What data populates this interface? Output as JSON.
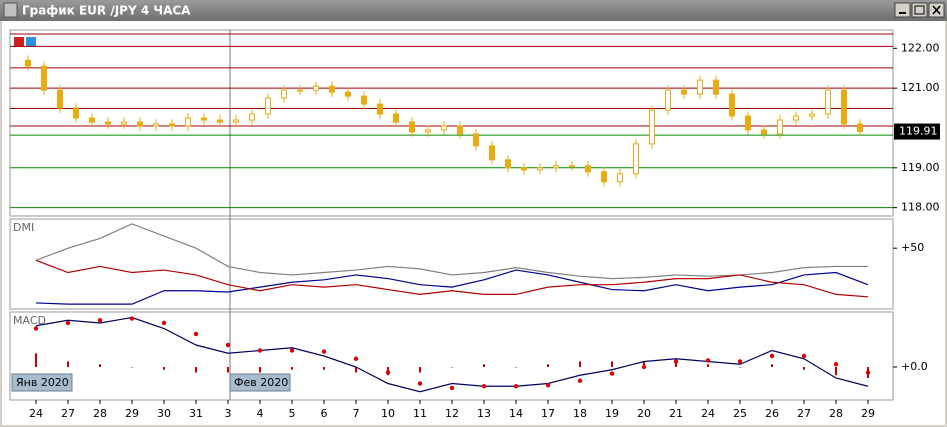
{
  "window": {
    "title": "График EUR /JPY  4 ЧАСА"
  },
  "x_axis": {
    "labels": [
      "24",
      "27",
      "28",
      "29",
      "30",
      "31",
      "3",
      "4",
      "5",
      "6",
      "7",
      "10",
      "11",
      "12",
      "13",
      "14",
      "17",
      "18",
      "19",
      "20",
      "21",
      "24",
      "25",
      "26",
      "27",
      "28",
      "29"
    ],
    "tags": [
      "Янв 2020",
      "Фев 2020"
    ]
  },
  "chart_data": [
    {
      "type": "candlestick",
      "color": "#e8ac10",
      "ylim": [
        117.79,
        122.46
      ],
      "yticks": [
        {
          "value": 122,
          "label": "122.00"
        },
        {
          "value": 121,
          "label": "121.00"
        },
        {
          "value": 119,
          "label": "119.00"
        },
        {
          "value": 118,
          "label": "118.00"
        }
      ],
      "last_price": 119.91,
      "levels": [
        {
          "value": 122.36,
          "color": "#a00000"
        },
        {
          "value": 122.05,
          "color": "#a00000"
        },
        {
          "value": 121.51,
          "color": "#a00000"
        },
        {
          "value": 121.0,
          "color": "#a00000"
        },
        {
          "value": 120.49,
          "color": "#a00000"
        },
        {
          "value": 120.05,
          "color": "#a00000"
        },
        {
          "value": 119.82,
          "color": "#008800"
        },
        {
          "value": 119.0,
          "color": "#008800"
        },
        {
          "value": 118.0,
          "color": "#008800"
        }
      ],
      "open": [
        121.7,
        121.55,
        120.95,
        120.5,
        120.25,
        120.15,
        120.1,
        120.15,
        120.05,
        120.1,
        120.05,
        120.25,
        120.2,
        120.15,
        120.2,
        120.35,
        120.75,
        120.95,
        120.95,
        121.05,
        120.9,
        120.8,
        120.6,
        120.35,
        120.15,
        119.9,
        119.95,
        120.05,
        119.85,
        119.55,
        119.2,
        119.0,
        118.95,
        119.0,
        119.05,
        119.05,
        118.9,
        118.65,
        118.85,
        119.6,
        120.45,
        120.95,
        120.85,
        121.2,
        120.85,
        120.3,
        119.95,
        119.85,
        120.2,
        120.3,
        120.35,
        120.95,
        120.1
      ],
      "high": [
        121.82,
        121.67,
        121.07,
        120.62,
        120.37,
        120.27,
        120.27,
        120.27,
        120.22,
        120.22,
        120.37,
        120.37,
        120.32,
        120.32,
        120.47,
        120.87,
        121.07,
        121.07,
        121.17,
        121.17,
        121.02,
        120.92,
        120.72,
        120.47,
        120.27,
        120.07,
        120.17,
        120.17,
        119.97,
        119.67,
        119.32,
        119.12,
        119.12,
        119.17,
        119.17,
        119.17,
        119.02,
        118.97,
        119.72,
        120.57,
        121.07,
        121.07,
        121.32,
        121.32,
        120.97,
        120.42,
        120.07,
        120.32,
        120.42,
        120.47,
        121.07,
        121.07,
        120.22
      ],
      "low": [
        121.43,
        120.83,
        120.38,
        120.13,
        120.03,
        119.98,
        119.98,
        119.93,
        119.93,
        119.93,
        119.93,
        120.08,
        120.03,
        120.03,
        120.08,
        120.23,
        120.63,
        120.83,
        120.83,
        120.78,
        120.68,
        120.48,
        120.23,
        120.03,
        119.78,
        119.78,
        119.83,
        119.73,
        119.43,
        119.08,
        118.88,
        118.83,
        118.83,
        118.88,
        118.93,
        118.78,
        118.53,
        118.53,
        118.73,
        119.48,
        120.33,
        120.73,
        120.73,
        120.73,
        120.18,
        119.83,
        119.73,
        119.73,
        120.08,
        120.18,
        120.23,
        119.98,
        119.79
      ],
      "close": [
        121.55,
        120.95,
        120.5,
        120.25,
        120.15,
        120.1,
        120.15,
        120.05,
        120.1,
        120.05,
        120.25,
        120.2,
        120.15,
        120.2,
        120.35,
        120.75,
        120.95,
        120.95,
        121.05,
        120.9,
        120.8,
        120.6,
        120.35,
        120.15,
        119.9,
        119.95,
        120.05,
        119.85,
        119.55,
        119.2,
        119.0,
        118.95,
        119.0,
        119.05,
        119.05,
        118.9,
        118.65,
        118.85,
        119.6,
        120.45,
        120.95,
        120.85,
        121.2,
        120.85,
        120.3,
        119.95,
        119.85,
        120.2,
        120.3,
        120.35,
        120.95,
        120.1,
        119.91
      ]
    },
    {
      "type": "line",
      "title": "DMI",
      "ylim": [
        0,
        74
      ],
      "yticks": [
        {
          "value": 50,
          "label": "+50"
        }
      ],
      "series": [
        {
          "color": "#808080",
          "style": "line",
          "values": [
            40,
            50,
            58,
            70,
            60,
            50,
            35,
            30,
            28,
            30,
            32,
            35,
            33,
            28,
            30,
            34,
            30,
            27,
            25,
            26,
            28,
            27,
            28,
            30,
            34,
            35,
            35
          ]
        },
        {
          "color": "#000090",
          "style": "line",
          "values": [
            5,
            4,
            4,
            4,
            15,
            15,
            14,
            18,
            22,
            24,
            28,
            25,
            20,
            18,
            24,
            32,
            28,
            22,
            16,
            15,
            20,
            15,
            18,
            20,
            28,
            30,
            20
          ]
        },
        {
          "color": "#b00000",
          "style": "line",
          "values": [
            40,
            30,
            35,
            30,
            32,
            28,
            20,
            15,
            20,
            18,
            20,
            16,
            12,
            15,
            12,
            12,
            18,
            20,
            20,
            22,
            25,
            25,
            28,
            22,
            20,
            12,
            10
          ]
        }
      ]
    },
    {
      "type": "line",
      "title": "MACD",
      "ylim": [
        -0.6,
        1.0
      ],
      "yticks": [
        {
          "value": 0,
          "label": "+0.0"
        }
      ],
      "series": [
        {
          "color": "#cc0000",
          "style": "bars",
          "values": [
            0.25,
            0.1,
            0.05,
            0.0,
            -0.05,
            -0.1,
            -0.1,
            -0.1,
            -0.05,
            -0.05,
            -0.1,
            -0.15,
            -0.1,
            0.0,
            0.05,
            0.0,
            0.05,
            0.1,
            0.1,
            0.1,
            0.08,
            0.05,
            0.0,
            0.05,
            -0.05,
            -0.15,
            -0.2
          ]
        },
        {
          "color": "#000060",
          "style": "line",
          "values": [
            0.75,
            0.85,
            0.8,
            0.9,
            0.7,
            0.4,
            0.25,
            0.3,
            0.35,
            0.2,
            0.0,
            -0.3,
            -0.45,
            -0.3,
            -0.35,
            -0.35,
            -0.3,
            -0.15,
            -0.05,
            0.1,
            0.15,
            0.1,
            0.05,
            0.3,
            0.15,
            -0.2,
            -0.35
          ]
        },
        {
          "color": "#dd0000",
          "style": "dots",
          "values": [
            0.7,
            0.8,
            0.85,
            0.88,
            0.8,
            0.6,
            0.4,
            0.3,
            0.3,
            0.28,
            0.15,
            -0.1,
            -0.3,
            -0.38,
            -0.35,
            -0.35,
            -0.33,
            -0.25,
            -0.12,
            0.0,
            0.1,
            0.12,
            0.1,
            0.2,
            0.2,
            0.05,
            -0.1
          ]
        }
      ]
    }
  ]
}
